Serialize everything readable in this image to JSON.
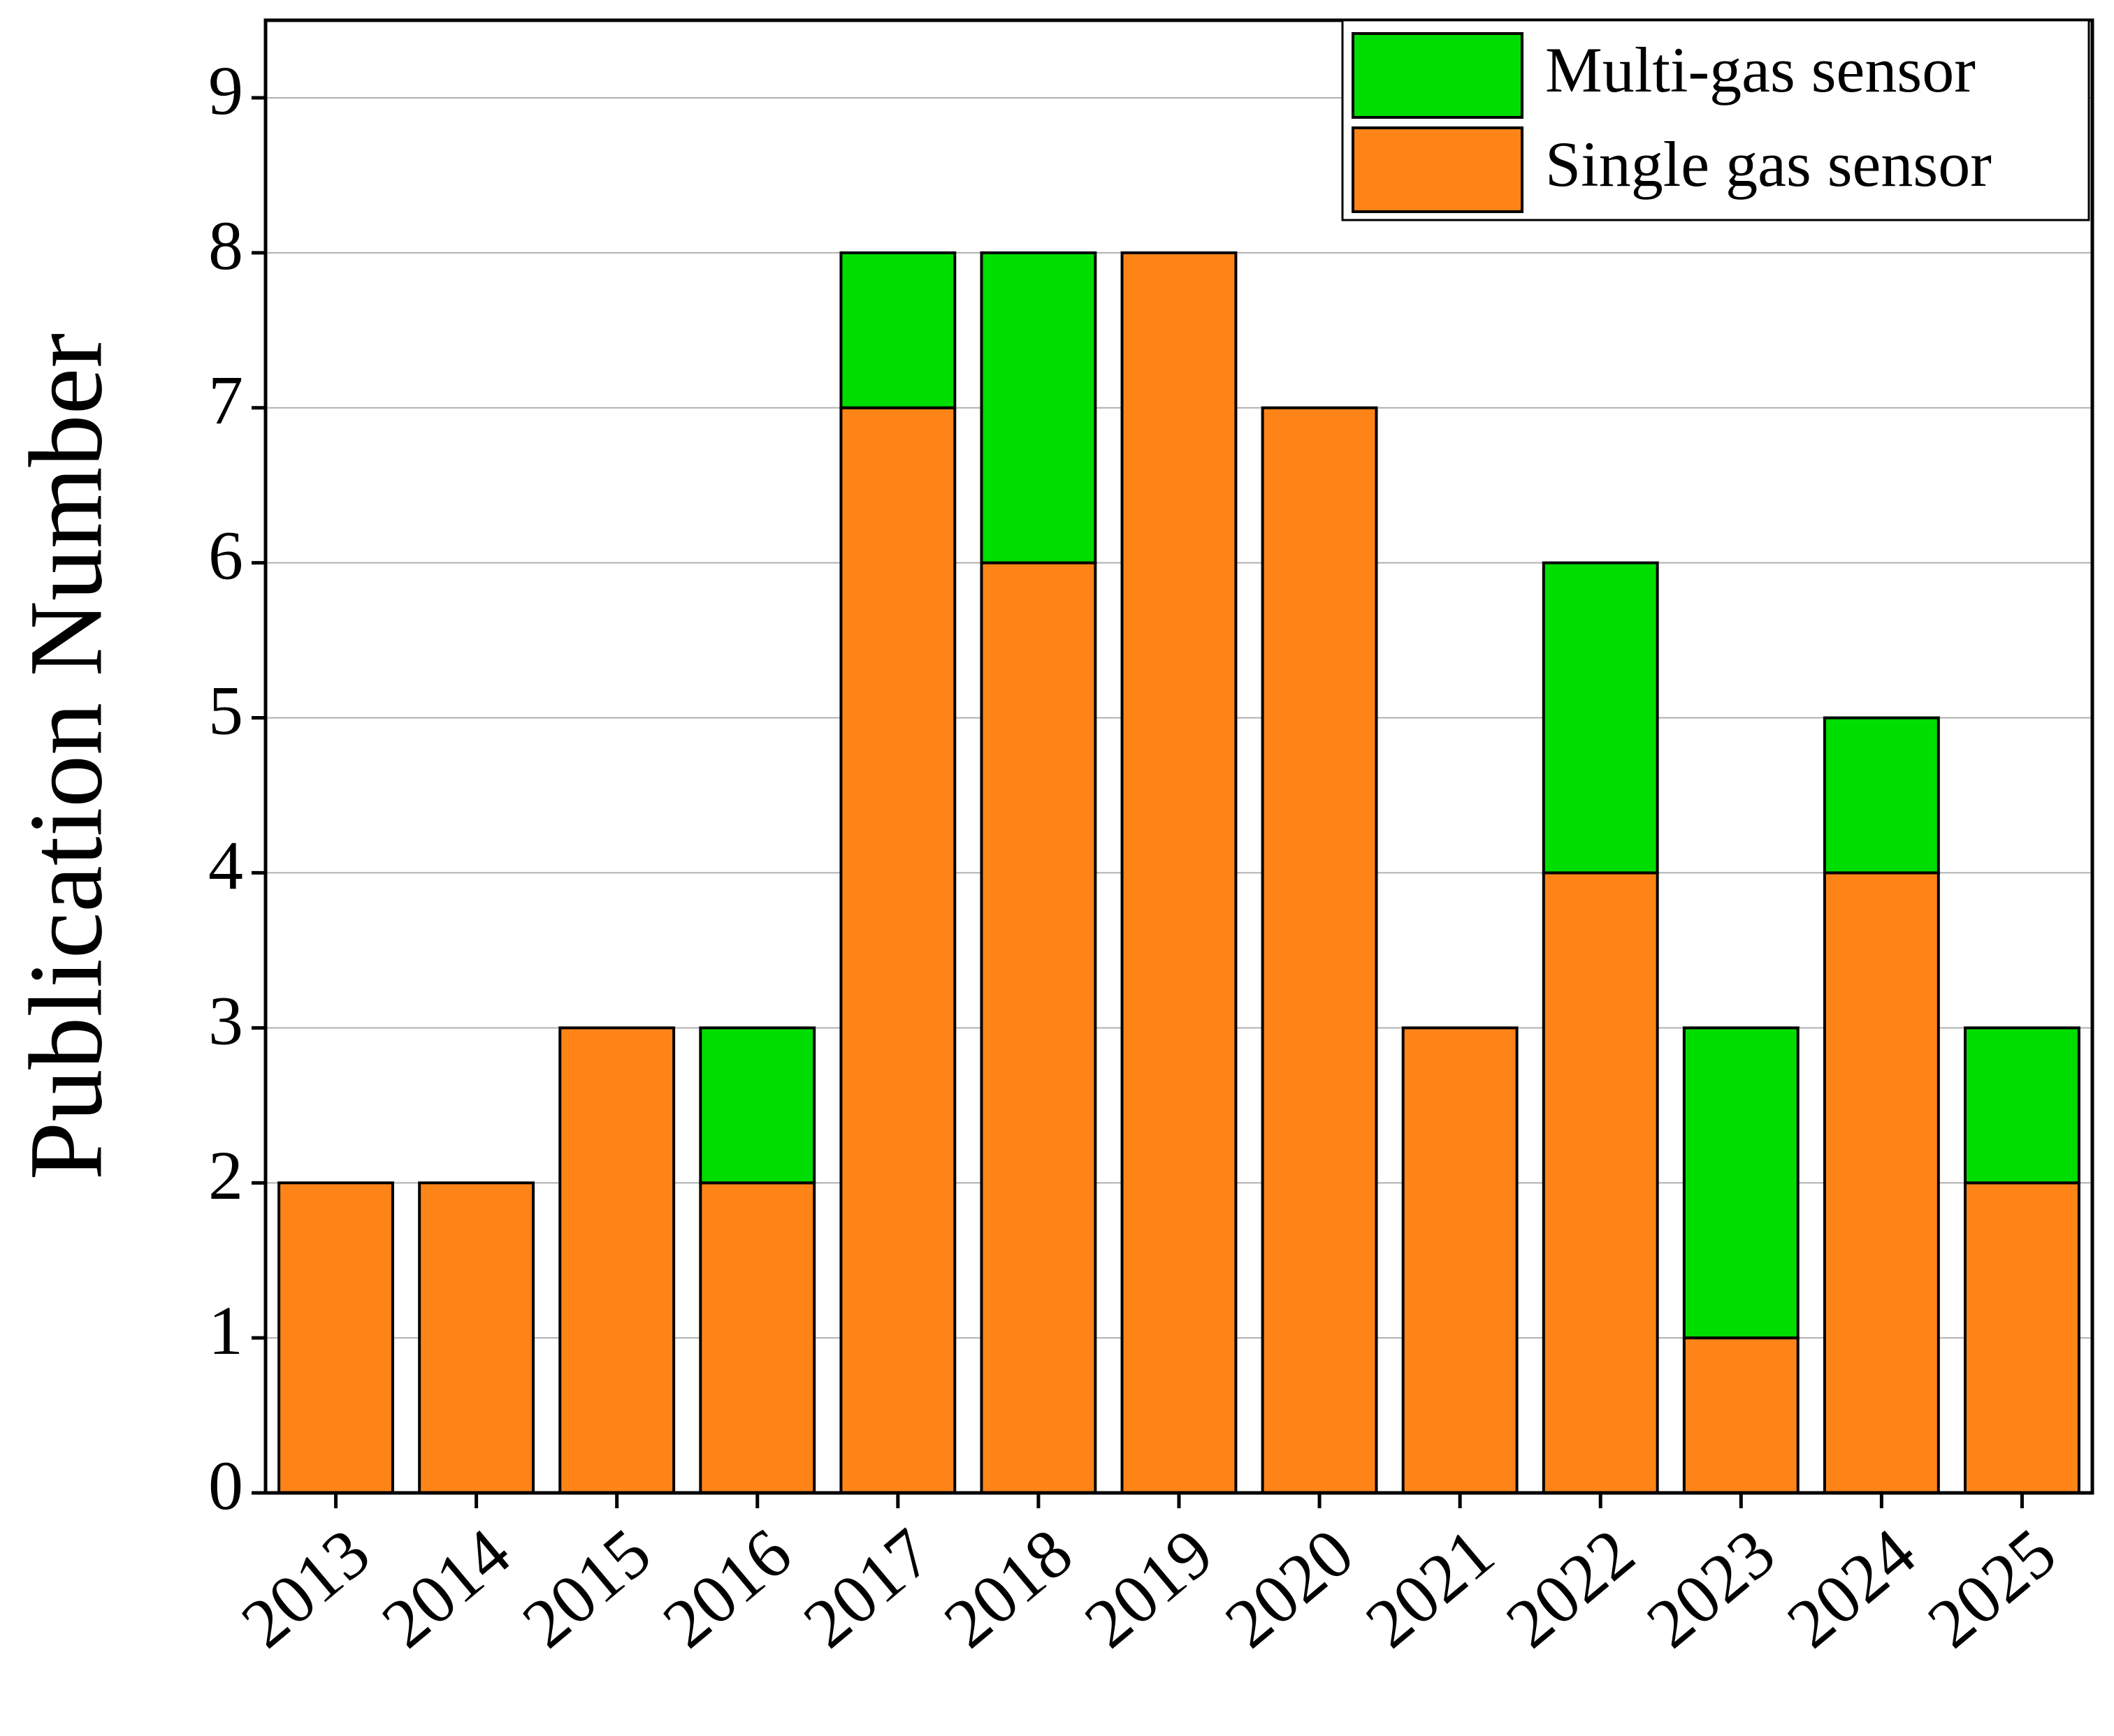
{
  "chart_data": {
    "type": "stacked_bar",
    "y_label": "Publication Number",
    "categories": [
      "2013",
      "2014",
      "2015",
      "2016",
      "2017",
      "2018",
      "2019",
      "2020",
      "2021",
      "2022",
      "2023",
      "2024",
      "2025"
    ],
    "series": [
      {
        "name": "Single gas sensor",
        "color": "#ff8418",
        "values": [
          2,
          2,
          3,
          2,
          7,
          6,
          8,
          7,
          3,
          4,
          1,
          4,
          2
        ]
      },
      {
        "name": "Multi-gas sensor",
        "color": "#00dd00",
        "values": [
          0,
          0,
          0,
          1,
          1,
          2,
          0,
          0,
          0,
          2,
          2,
          1,
          1
        ]
      }
    ],
    "ylim": [
      0,
      9.5
    ],
    "yticks": [
      0,
      1,
      2,
      3,
      4,
      5,
      6,
      7,
      8,
      9
    ],
    "grid": true,
    "legend": "upper right"
  }
}
